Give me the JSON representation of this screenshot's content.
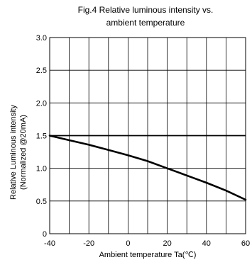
{
  "chart_data": {
    "type": "line",
    "title_lines": [
      "Fig.4 Relative luminous intensity vs.",
      "ambient temperature"
    ],
    "xlabel": "Ambient temperature Ta(℃)",
    "ylabel_lines": [
      "Relative Luminous intensity",
      "(Normalized @20mA)"
    ],
    "xlim": [
      -40,
      60
    ],
    "ylim": [
      0,
      3.0
    ],
    "xticks": [
      "-40",
      "-20",
      "0",
      "20",
      "40",
      "60"
    ],
    "yticks": [
      "0",
      "0.5",
      "1.0",
      "1.5",
      "2.0",
      "2.5",
      "3.0"
    ],
    "x_grid_values": [
      -40,
      -30,
      -20,
      -10,
      0,
      10,
      20,
      30,
      40,
      50,
      60
    ],
    "y_grid_values": [
      0,
      0.5,
      1.0,
      1.5,
      2.0,
      2.5,
      3.0
    ],
    "grid": true,
    "series": [
      {
        "x": [
          -40,
          -30,
          -20,
          -10,
          0,
          10,
          20,
          30,
          40,
          50,
          60
        ],
        "y": [
          1.5,
          1.43,
          1.36,
          1.28,
          1.2,
          1.11,
          1.0,
          0.89,
          0.78,
          0.66,
          0.52
        ]
      }
    ],
    "reference_lines": [
      1.5
    ]
  }
}
